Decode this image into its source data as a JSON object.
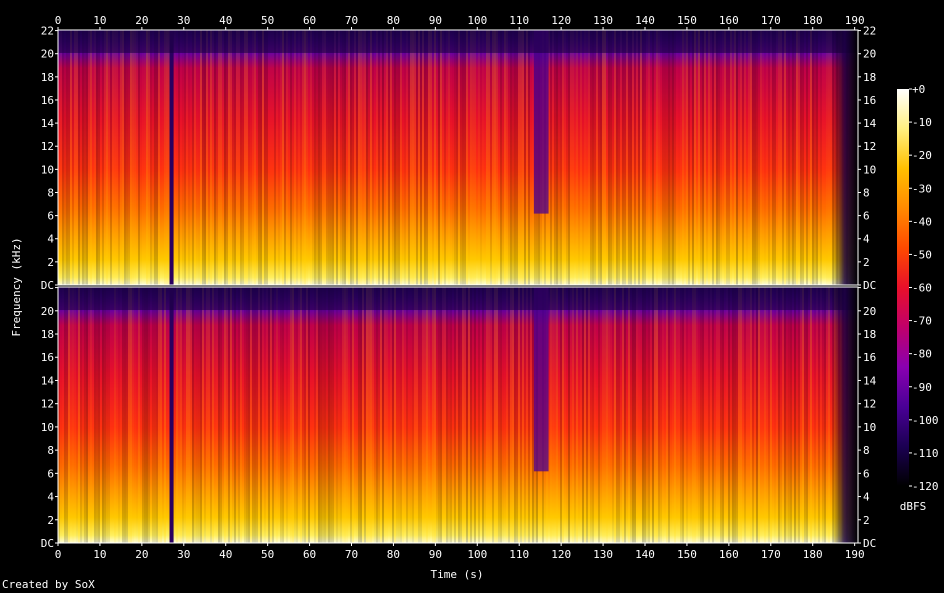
{
  "footer": {
    "credit": "Created by SoX"
  },
  "chart_data": {
    "type": "heatmap",
    "title": "",
    "xlabel": "Time (s)",
    "ylabel": "Frequency (kHz)",
    "colorbar_label": "dBFS",
    "xlim": [
      0,
      190.8
    ],
    "ylim": [
      0,
      22.05
    ],
    "x_ticks": [
      0,
      10,
      20,
      30,
      40,
      50,
      60,
      70,
      80,
      90,
      100,
      110,
      120,
      130,
      140,
      150,
      160,
      170,
      180,
      190
    ],
    "y_ticks": [
      0,
      2,
      4,
      6,
      8,
      10,
      12,
      14,
      16,
      18,
      20,
      22
    ],
    "y_tick_labels": [
      "DC",
      "2",
      "4",
      "6",
      "8",
      "10",
      "12",
      "14",
      "16",
      "18",
      "20",
      "22"
    ],
    "colorbar_ticks": [
      0,
      -10,
      -20,
      -30,
      -40,
      -50,
      -60,
      -70,
      -80,
      -90,
      -100,
      -110,
      -120
    ],
    "colorbar_tick_labels": [
      "+0",
      "-10",
      "-20",
      "-30",
      "-40",
      "-50",
      "-60",
      "-70",
      "-80",
      "-90",
      "-100",
      "-110",
      "-120"
    ],
    "colorbar_range": [
      -120,
      0
    ],
    "colormap": [
      "#000000",
      "#1b0052",
      "#4a0096",
      "#8a00b0",
      "#c0006a",
      "#e8102a",
      "#ff4a00",
      "#ff8a00",
      "#ffc000",
      "#fff080",
      "#ffffff"
    ],
    "channels": 2,
    "notes": [
      {
        "t": 27,
        "kind": "near-silence"
      },
      {
        "t": 115,
        "kind": "reduced high frequencies"
      },
      {
        "t": 187,
        "kind": "fade-out"
      }
    ]
  }
}
